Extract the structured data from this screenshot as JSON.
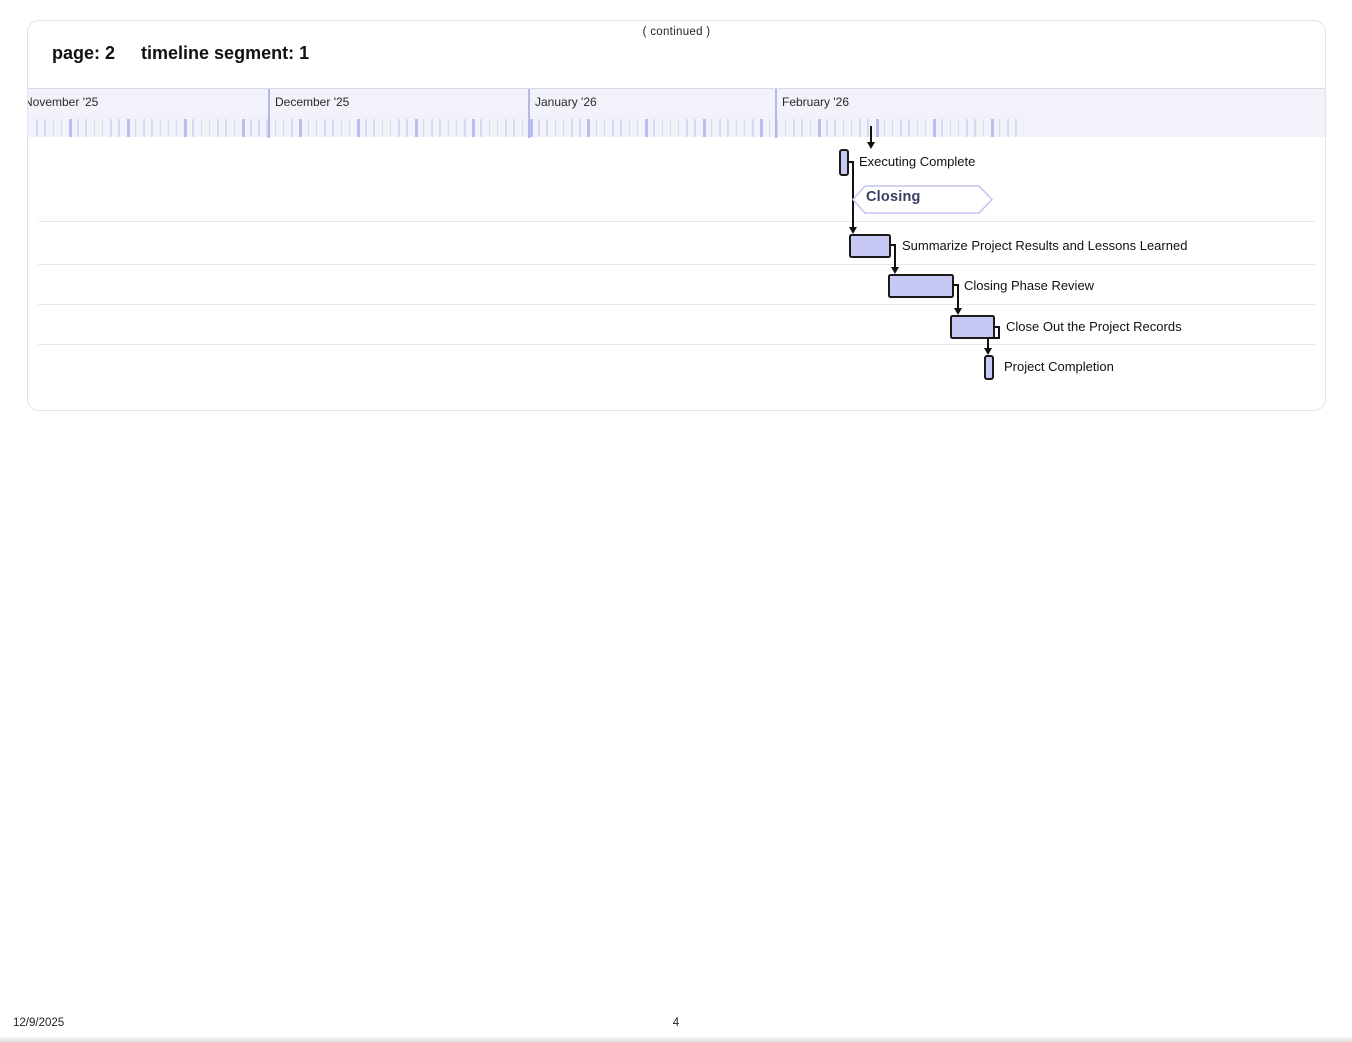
{
  "header": {
    "continued": "( continued )",
    "page_label": "page: 2",
    "segment_label": "timeline segment: 1"
  },
  "chart_data": {
    "type": "gantt",
    "title": "",
    "timescale": {
      "unit_labels": "months",
      "tick_unit": "day",
      "months": [
        "November '25",
        "December '25",
        "January '26",
        "February '26"
      ],
      "november_label_clipped_at_left_edge": true
    },
    "tasks": [
      {
        "name": "Executing Complete",
        "kind": "milestone",
        "date_est": "2026-02-09"
      },
      {
        "name": "Closing",
        "kind": "phase-label",
        "start_est": "2026-02-10",
        "end_est": "2026-02-27"
      },
      {
        "name": "Summarize Project Results and Lessons Learned",
        "kind": "task",
        "start_est": "2026-02-09",
        "end_est": "2026-02-14"
      },
      {
        "name": "Closing Phase Review",
        "kind": "task",
        "start_est": "2026-02-14",
        "end_est": "2026-02-22"
      },
      {
        "name": "Close Out the Project Records",
        "kind": "task",
        "start_est": "2026-02-21",
        "end_est": "2026-02-27"
      },
      {
        "name": "Project Completion",
        "kind": "milestone",
        "date_est": "2026-02-26"
      }
    ],
    "links": [
      {
        "from": "previous page segment",
        "to": "Executing Complete"
      },
      {
        "from": "Executing Complete",
        "to": "Summarize Project Results and Lessons Learned"
      },
      {
        "from": "Summarize Project Results and Lessons Learned",
        "to": "Closing Phase Review"
      },
      {
        "from": "Closing Phase Review",
        "to": "Close Out the Project Records"
      },
      {
        "from": "Close Out the Project Records",
        "to": "Project Completion"
      }
    ],
    "layout_hints": {
      "grid": "horizontal row separators",
      "legend": "none"
    },
    "colors": {
      "bar_fill": "#c7c9f4",
      "bar_border": "#1a1a1a",
      "band_background": "#f1f2fa",
      "day_tick": "#d8daf4",
      "week_tick": "#b9bdee",
      "month_divider": "#b4b8e6",
      "phase_chevron_stroke": "#c3c6f0",
      "phase_chevron_text": "#3b3e63",
      "link_line": "#111111"
    }
  },
  "footer": {
    "date": "12/9/2025",
    "page_number": "4"
  }
}
